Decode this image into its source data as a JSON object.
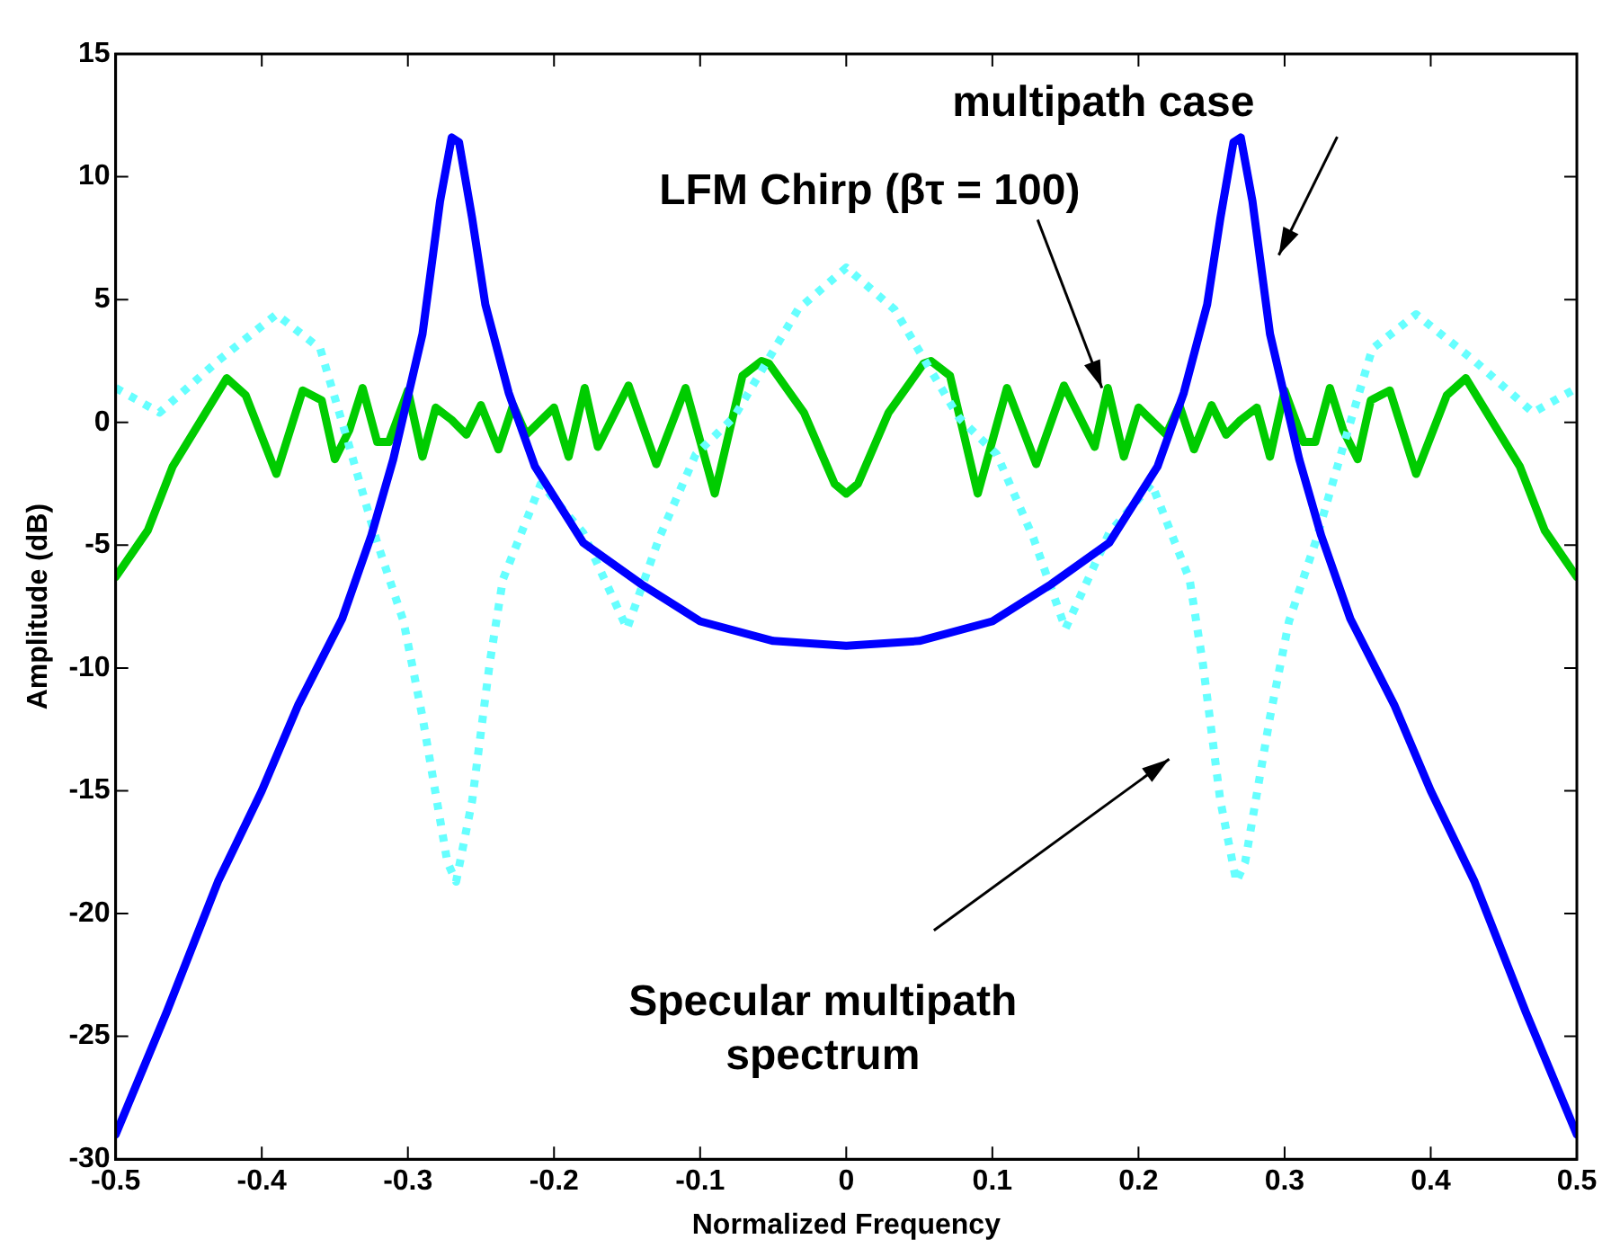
{
  "chart_data": {
    "type": "line",
    "xlabel": "Normalized Frequency",
    "ylabel": "Amplitude (dB)",
    "xlim": [
      -0.5,
      0.5
    ],
    "xticks": [
      -0.5,
      -0.4,
      -0.3,
      -0.2,
      -0.1,
      0,
      0.1,
      0.2,
      0.3,
      0.4,
      0.5
    ],
    "ylim": [
      -30,
      15
    ],
    "yticks": [
      -30,
      -25,
      -20,
      -15,
      -10,
      -5,
      0,
      5,
      10,
      15
    ],
    "grid": false,
    "legend": false,
    "marker": "none",
    "series": [
      {
        "color": "#0000ff",
        "line_style": "solid",
        "x": [
          -0.5,
          -0.465,
          -0.43,
          -0.4,
          -0.375,
          -0.345,
          -0.325,
          -0.31,
          -0.29,
          -0.278,
          -0.27,
          -0.265,
          -0.256,
          -0.247,
          -0.231,
          -0.213,
          -0.18,
          -0.14,
          -0.1,
          -0.05,
          0,
          0.05,
          0.1,
          0.14,
          0.18,
          0.213,
          0.231,
          0.247,
          0.256,
          0.265,
          0.27,
          0.278,
          0.29,
          0.31,
          0.325,
          0.345,
          0.375,
          0.4,
          0.43,
          0.465,
          0.5
        ],
        "values": [
          -29,
          -24,
          -18.7,
          -15,
          -11.5,
          -8,
          -4.6,
          -1.5,
          3.6,
          9,
          11.6,
          11.4,
          8.3,
          4.8,
          1.2,
          -1.8,
          -4.9,
          -6.6,
          -8.1,
          -8.9,
          -9.1,
          -8.9,
          -8.1,
          -6.6,
          -4.9,
          -1.8,
          1.2,
          4.8,
          8.3,
          11.4,
          11.6,
          9,
          3.6,
          -1.5,
          -4.6,
          -8,
          -11.5,
          -15,
          -18.7,
          -24,
          -29
        ]
      },
      {
        "color": "#66ffff",
        "line_style": "dotted",
        "x": [
          -0.5,
          -0.47,
          -0.43,
          -0.39,
          -0.36,
          -0.341,
          -0.321,
          -0.303,
          -0.29,
          -0.273,
          -0.267,
          -0.256,
          -0.244,
          -0.235,
          -0.209,
          -0.18,
          -0.15,
          -0.128,
          -0.103,
          -0.077,
          -0.033,
          0,
          0.033,
          0.077,
          0.103,
          0.128,
          0.15,
          0.18,
          0.209,
          0.235,
          0.244,
          0.256,
          0.267,
          0.273,
          0.29,
          0.303,
          0.321,
          0.341,
          0.36,
          0.39,
          0.43,
          0.47,
          0.5
        ],
        "values": [
          1.4,
          0.4,
          2.5,
          4.4,
          3,
          -0.8,
          -4.9,
          -8.1,
          -12,
          -17.9,
          -18.7,
          -15.4,
          -9.8,
          -6.4,
          -2.5,
          -4.5,
          -8.4,
          -4.7,
          -1.3,
          0.2,
          4.6,
          6.3,
          4.6,
          0.2,
          -1.3,
          -4.7,
          -8.4,
          -4.5,
          -2.5,
          -6.4,
          -9.8,
          -15.4,
          -18.7,
          -17.9,
          -12,
          -8.1,
          -4.9,
          -0.8,
          3,
          4.4,
          2.5,
          0.4,
          1.4
        ]
      },
      {
        "color": "#00cc00",
        "line_style": "solid",
        "x": [
          -0.5,
          -0.478,
          -0.461,
          -0.424,
          -0.411,
          -0.39,
          -0.372,
          -0.359,
          -0.35,
          -0.34,
          -0.331,
          -0.321,
          -0.313,
          -0.3,
          -0.29,
          -0.281,
          -0.27,
          -0.26,
          -0.25,
          -0.238,
          -0.228,
          -0.219,
          -0.2,
          -0.19,
          -0.179,
          -0.17,
          -0.149,
          -0.13,
          -0.11,
          -0.09,
          -0.071,
          -0.058,
          -0.053,
          -0.029,
          -0.008,
          0,
          0.008,
          0.029,
          0.053,
          0.058,
          0.071,
          0.09,
          0.11,
          0.13,
          0.149,
          0.17,
          0.179,
          0.19,
          0.2,
          0.219,
          0.228,
          0.238,
          0.25,
          0.26,
          0.27,
          0.281,
          0.29,
          0.3,
          0.313,
          0.321,
          0.331,
          0.34,
          0.35,
          0.359,
          0.372,
          0.39,
          0.411,
          0.424,
          0.461,
          0.478,
          0.5
        ],
        "values": [
          -6.3,
          -4.4,
          -1.8,
          1.8,
          1.1,
          -2.1,
          1.3,
          0.9,
          -1.5,
          -0.3,
          1.4,
          -0.8,
          -0.8,
          1.3,
          -1.4,
          0.6,
          0.1,
          -0.5,
          0.7,
          -1.1,
          0.7,
          -0.5,
          0.6,
          -1.4,
          1.4,
          -1,
          1.5,
          -1.7,
          1.4,
          -2.9,
          1.9,
          2.5,
          2.4,
          0.4,
          -2.5,
          -2.9,
          -2.5,
          0.4,
          2.4,
          2.5,
          1.9,
          -2.9,
          1.4,
          -1.7,
          1.5,
          -1,
          1.4,
          -1.4,
          0.6,
          -0.5,
          0.7,
          -1.1,
          0.7,
          -0.5,
          0.1,
          0.6,
          -1.4,
          1.3,
          -0.8,
          -0.8,
          1.4,
          -0.3,
          -1.5,
          0.9,
          1.3,
          -2.1,
          1.1,
          1.8,
          -1.8,
          -4.4,
          -6.3
        ]
      }
    ],
    "annotations": [
      "multipath case",
      {
        "text": "LFM Chirp (βτ = 100)",
        "x": 0.175,
        "y": 1.4
      },
      "Specular multipath spectrum"
    ]
  }
}
